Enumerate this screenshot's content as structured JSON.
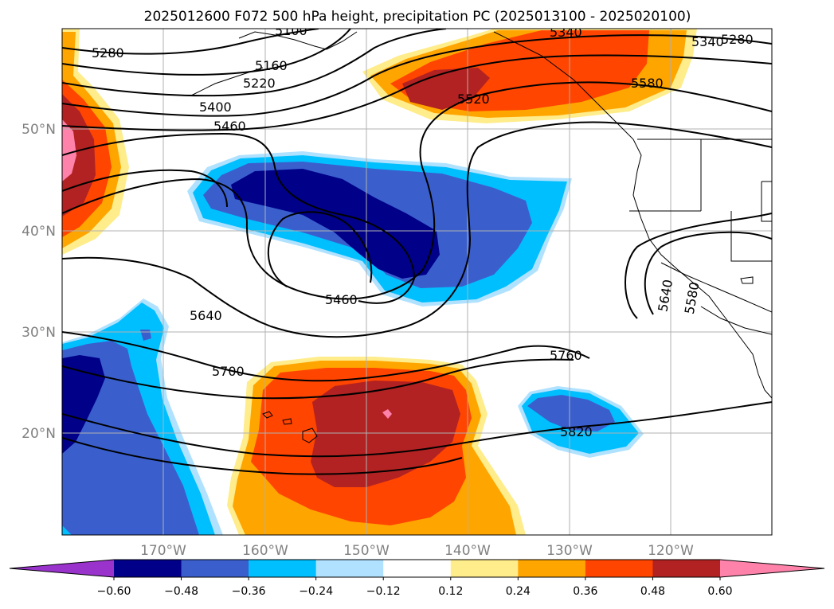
{
  "title": "2025012600 F072 500 hPa height, precipitation PC (2025013100 - 2025020100)",
  "chart_data": {
    "type": "contour-map",
    "fields": {
      "contour_field": "500 hPa height",
      "shaded_field": "precipitation PC"
    },
    "lat_ticks": [
      "50°N",
      "40°N",
      "30°N",
      "20°N"
    ],
    "lon_ticks": [
      "170°W",
      "160°W",
      "150°W",
      "140°W",
      "130°W",
      "120°W"
    ],
    "colorbar": {
      "ticks": [
        "−0.60",
        "−0.48",
        "−0.36",
        "−0.24",
        "−0.12",
        "0.12",
        "0.24",
        "0.36",
        "0.48",
        "0.60"
      ],
      "colors": [
        "#9933cc",
        "#000088",
        "#3a5fcd",
        "#00bfff",
        "#b0e2ff",
        "#ffffff",
        "#ffec8b",
        "#ffa500",
        "#ff4500",
        "#b22222",
        "#ff82ab"
      ],
      "extend": "both"
    },
    "contour_labels": [
      "5100",
      "5160",
      "5220",
      "5280",
      "5340",
      "5340",
      "5280",
      "5400",
      "5460",
      "5520",
      "5580",
      "5460",
      "5640",
      "5580",
      "5640",
      "5700",
      "5760",
      "5820"
    ],
    "grid": true
  }
}
